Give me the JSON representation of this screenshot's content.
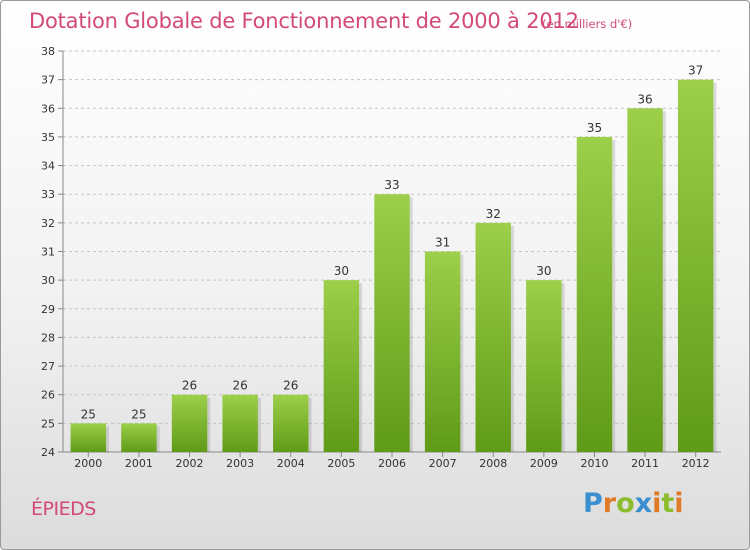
{
  "title": "Dotation Globale de Fonctionnement de 2000 à 2012",
  "unit_note": "(en milliers d'€)",
  "commune": "ÉPIEDS",
  "logo": {
    "text": "Proxiti",
    "letters": [
      {
        "ch": "P",
        "color": "#3a8fd0"
      },
      {
        "ch": "r",
        "color": "#e07a27"
      },
      {
        "ch": "o",
        "color": "#8cbd2e"
      },
      {
        "ch": "x",
        "color": "#3a8fd0"
      },
      {
        "ch": "i",
        "color": "#e07a27"
      },
      {
        "ch": "t",
        "color": "#8cbd2e"
      },
      {
        "ch": "i",
        "color": "#e07a27"
      }
    ]
  },
  "colors": {
    "title": "#d2497a",
    "bar_top": "#9ccf4a",
    "bar_bottom": "#5f9b17",
    "grid": "#c4c4c4",
    "axis_text": "#333333"
  },
  "chart_data": {
    "type": "bar",
    "categories": [
      "2000",
      "2001",
      "2002",
      "2003",
      "2004",
      "2005",
      "2006",
      "2007",
      "2008",
      "2009",
      "2010",
      "2011",
      "2012"
    ],
    "values": [
      25,
      25,
      26,
      26,
      26,
      30,
      33,
      31,
      32,
      30,
      35,
      36,
      37
    ],
    "data_labels": [
      "25",
      "25",
      "26",
      "26",
      "26",
      "30",
      "33",
      "31",
      "32",
      "30",
      "35",
      "36",
      "37"
    ],
    "ylim": [
      24,
      38
    ],
    "yticks": [
      "24",
      "25",
      "26",
      "27",
      "28",
      "29",
      "30",
      "31",
      "32",
      "33",
      "34",
      "35",
      "36",
      "37",
      "38"
    ],
    "grid": true,
    "xlabel": "",
    "ylabel": ""
  }
}
